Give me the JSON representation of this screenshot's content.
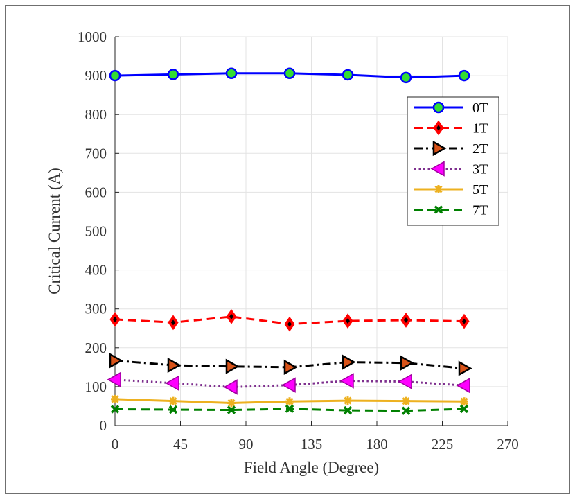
{
  "chart_data": {
    "type": "line",
    "title": "",
    "xlabel": "Field Angle (Degree)",
    "ylabel": "Critical Current (A)",
    "xlim": [
      0,
      270
    ],
    "ylim": [
      0,
      1000
    ],
    "xticks": [
      0,
      45,
      90,
      135,
      180,
      225,
      270
    ],
    "yticks": [
      0,
      100,
      200,
      300,
      400,
      500,
      600,
      700,
      800,
      900,
      1000
    ],
    "grid": true,
    "legend_position": "top-right",
    "x": [
      0,
      40,
      80,
      120,
      160,
      200,
      240
    ],
    "series": [
      {
        "name": "0T",
        "values": [
          900,
          903,
          906,
          906,
          902,
          895,
          900
        ],
        "color": "#0000ff",
        "line_style": "solid",
        "marker": "circle",
        "marker_fill": "#33dd33"
      },
      {
        "name": "1T",
        "values": [
          273,
          265,
          280,
          261,
          269,
          271,
          268
        ],
        "color": "#ff0000",
        "line_style": "dashed",
        "marker": "diamond",
        "marker_fill": "#000000"
      },
      {
        "name": "2T",
        "values": [
          167,
          155,
          152,
          150,
          163,
          161,
          147
        ],
        "color": "#000000",
        "line_style": "dash-dot",
        "marker": "triangle-right",
        "marker_fill": "#d95319"
      },
      {
        "name": "3T",
        "values": [
          118,
          109,
          99,
          104,
          115,
          113,
          103
        ],
        "color": "#7e2f8e",
        "line_style": "dotted",
        "marker": "triangle-left",
        "marker_fill": "#ff00ff"
      },
      {
        "name": "5T",
        "values": [
          68,
          63,
          58,
          62,
          64,
          63,
          62
        ],
        "color": "#edb120",
        "line_style": "solid",
        "marker": "asterisk",
        "marker_fill": "#edb120"
      },
      {
        "name": "7T",
        "values": [
          42,
          41,
          40,
          43,
          39,
          38,
          43
        ],
        "color": "#008000",
        "line_style": "dashed",
        "marker": "x",
        "marker_fill": "#008000"
      }
    ]
  }
}
